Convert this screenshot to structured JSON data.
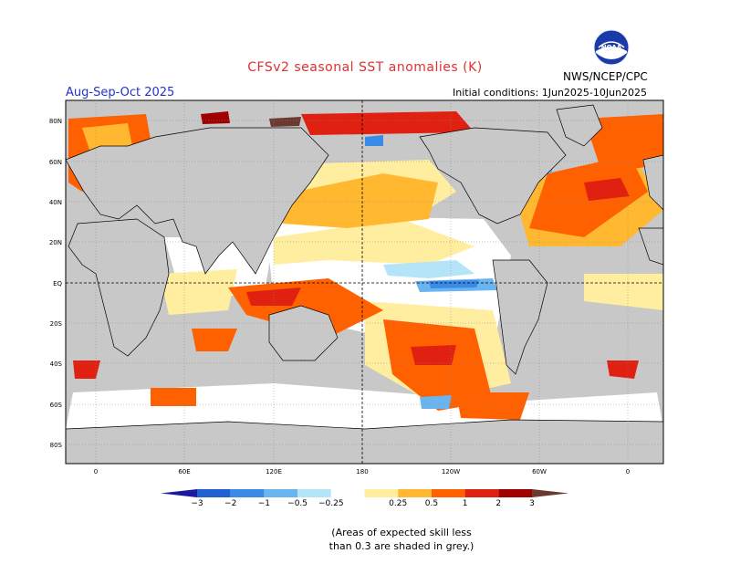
{
  "header": {
    "title": "CFSv2 seasonal SST anomalies (K)",
    "season": "Aug-Sep-Oct 2025",
    "initial_conditions": "Initial conditions: 1Jun2025-10Jun2025",
    "agency": "NWS/NCEP/CPC",
    "logo_text": "NOAA"
  },
  "axes": {
    "lat_labels": [
      "80N",
      "60N",
      "40N",
      "20N",
      "EQ",
      "20S",
      "40S",
      "60S",
      "80S"
    ],
    "lon_labels": [
      "0",
      "60E",
      "120E",
      "180",
      "120W",
      "60W",
      "0"
    ]
  },
  "colorbar": {
    "labels": [
      "−3",
      "−2",
      "−1",
      "−0.5",
      "−0.25",
      "0.25",
      "0.5",
      "1",
      "2",
      "3"
    ],
    "colors": [
      "#1a1aa0",
      "#2060d0",
      "#3a8ae8",
      "#6ab4f0",
      "#b4e4f8",
      "#ffffff",
      "#ffeea0",
      "#ffb830",
      "#ff6000",
      "#e02010",
      "#a00000",
      "#6a3a30"
    ]
  },
  "note": {
    "line1": "(Areas of expected skill less",
    "line2": "than 0.3 are shaded in grey.)"
  },
  "colors": {
    "land": "#ffffff",
    "low_skill": "#c8c8c8",
    "coast": "#000000"
  }
}
